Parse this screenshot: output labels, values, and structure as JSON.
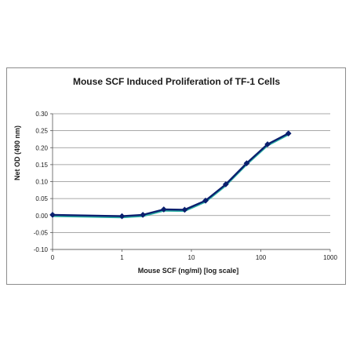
{
  "chart_data": {
    "type": "line",
    "title": "Mouse SCF Induced Proliferation of TF-1 Cells",
    "xlabel": "Mouse SCF (ng/ml) [log scale]",
    "ylabel": "Net OD (490 nm)",
    "x_scale": "log",
    "x_ticks": [
      "0",
      "1",
      "10",
      "100",
      "1000"
    ],
    "y_ticks": [
      "0.30",
      "0.25",
      "0.20",
      "0.15",
      "0.10",
      "0.05",
      "0.00",
      "-0.05",
      "-0.10"
    ],
    "ylim": [
      -0.1,
      0.3
    ],
    "grid": "horizontal",
    "legend": "none",
    "series": [
      {
        "color": "#0a1f6e",
        "marker": "diamond",
        "x": [
          0.1,
          1,
          2,
          4,
          8,
          16,
          31.25,
          62.5,
          125,
          250
        ],
        "y": [
          0.002,
          -0.002,
          0.002,
          0.018,
          0.017,
          0.044,
          0.092,
          0.154,
          0.21,
          0.242
        ]
      }
    ],
    "shadow_color": "#2fb3a6"
  }
}
